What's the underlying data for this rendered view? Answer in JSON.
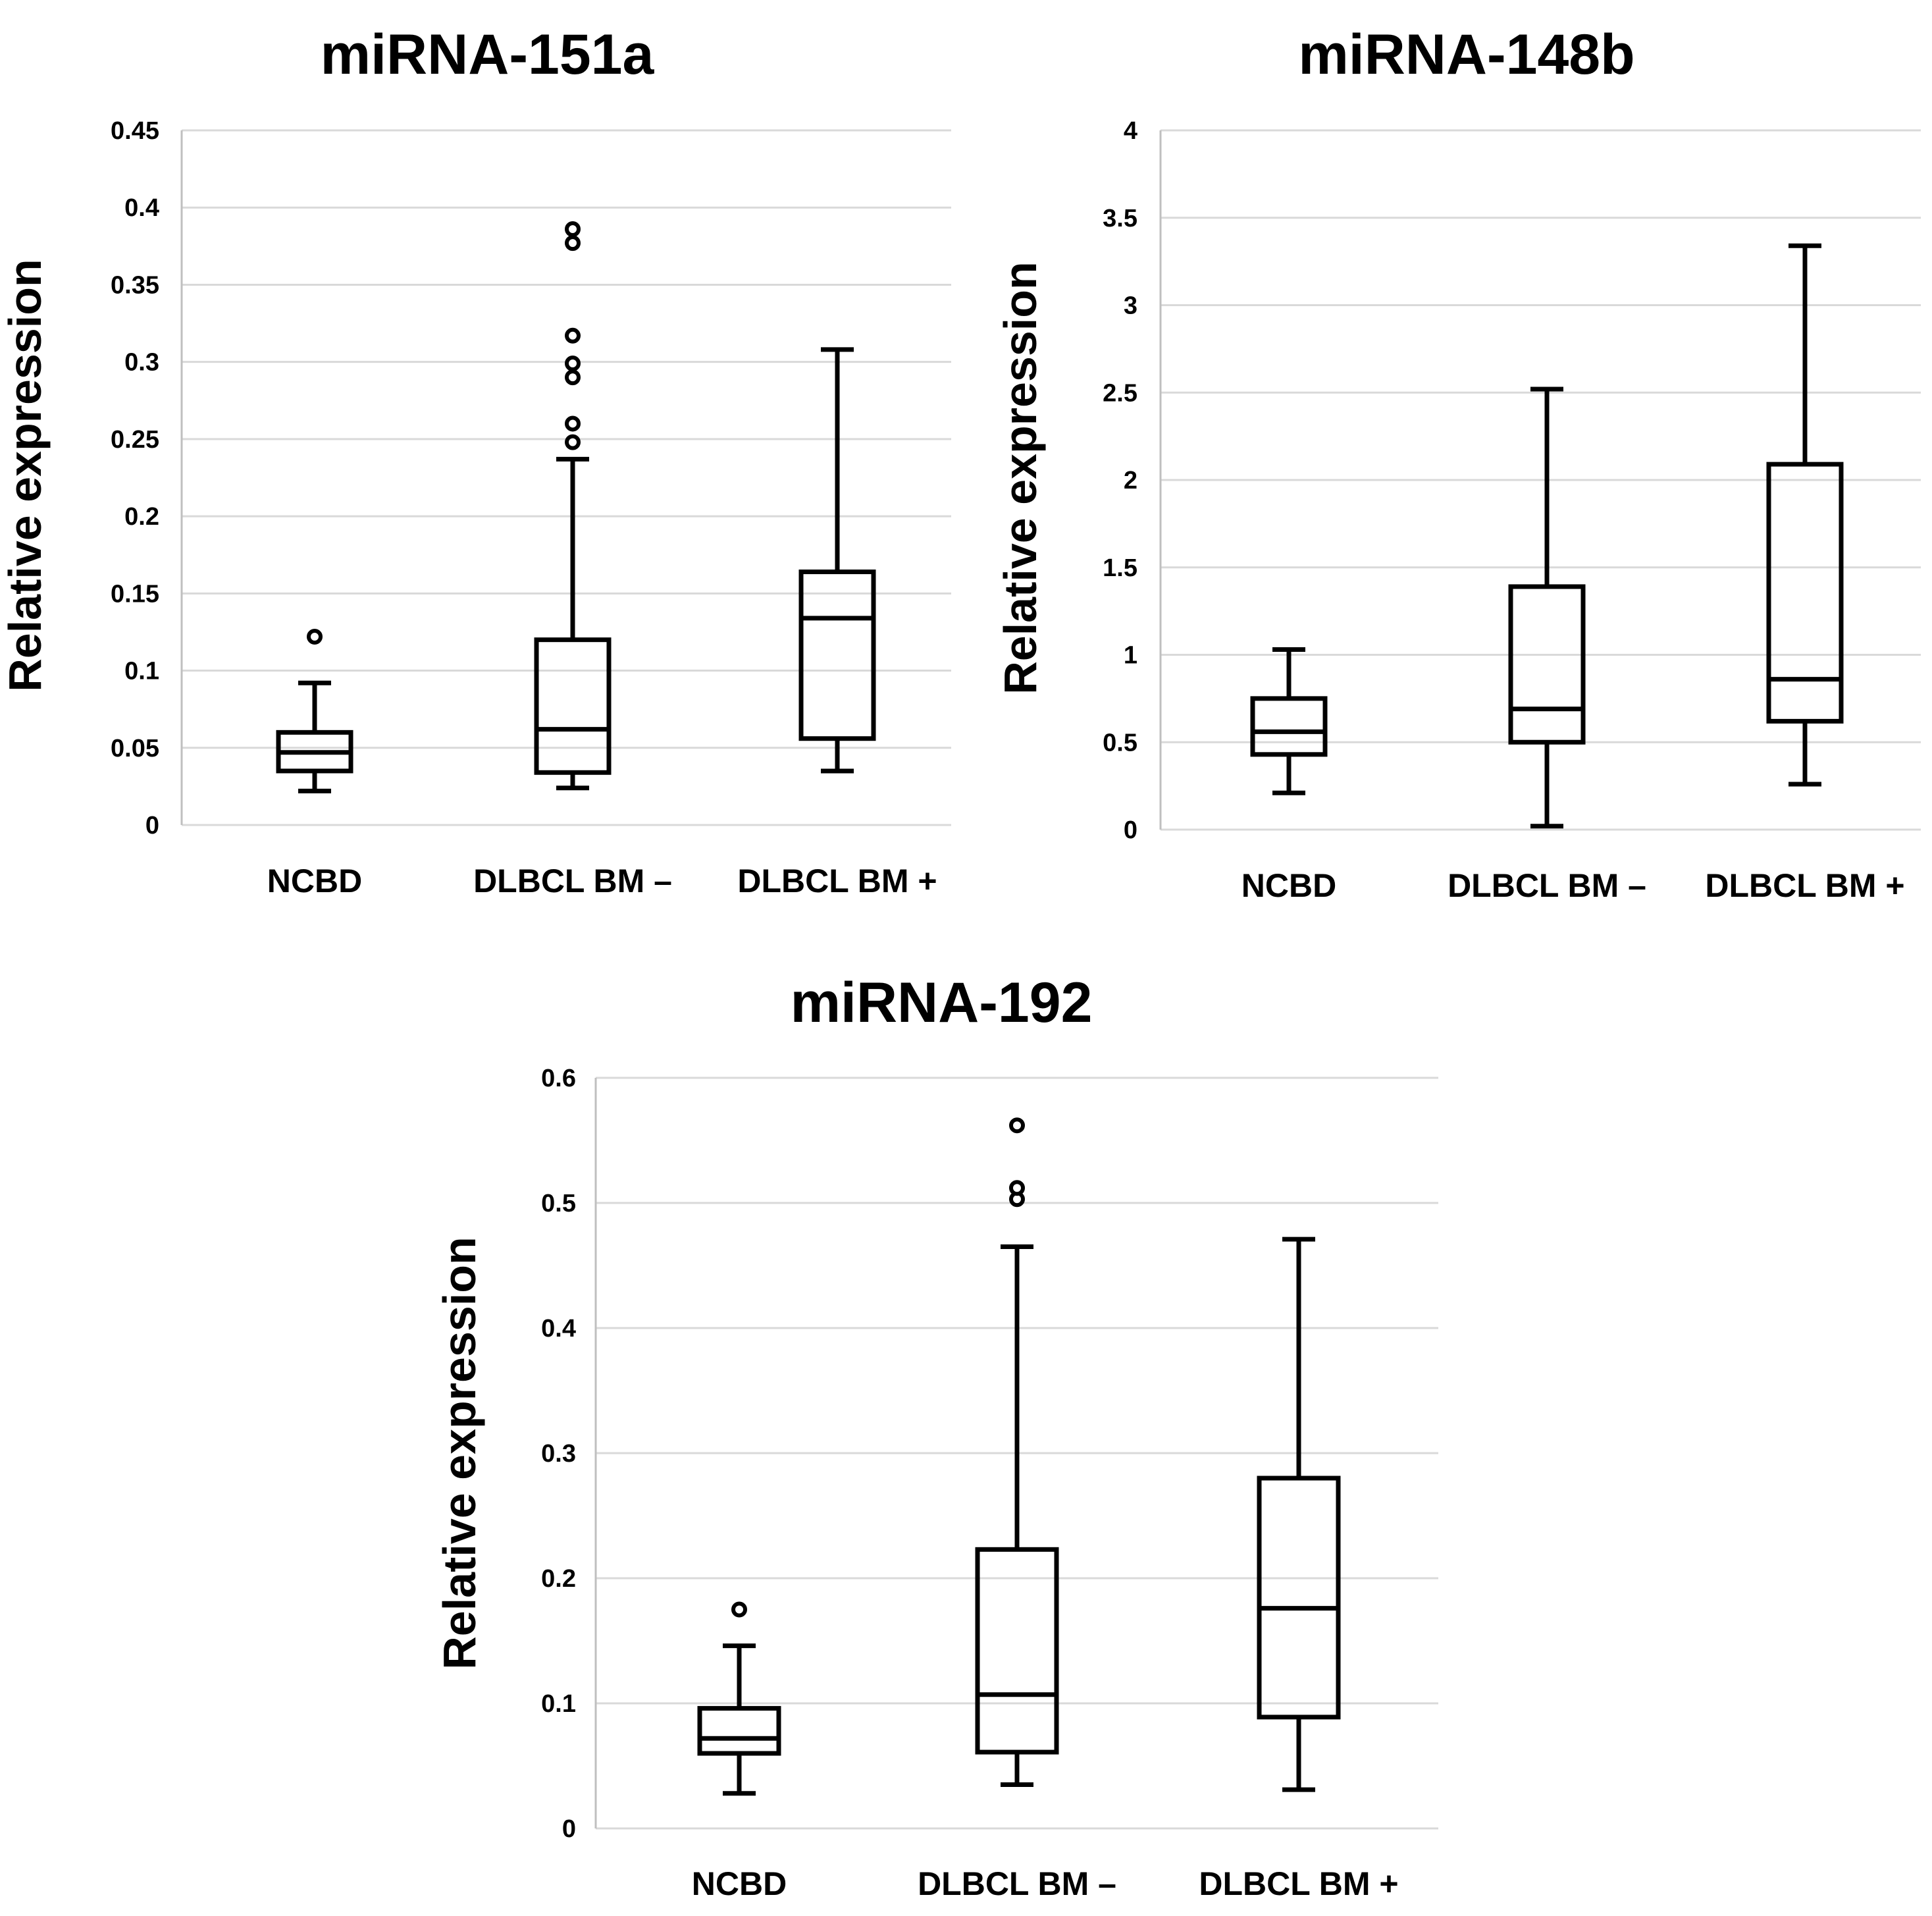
{
  "chart_data": [
    {
      "type": "box",
      "title": "miRNA-151a",
      "ylabel": "Relative expression",
      "xlabel": "",
      "ylim": [
        0,
        0.45
      ],
      "yticks": [
        "0",
        "0.05",
        "0.1",
        "0.15",
        "0.2",
        "0.25",
        "0.3",
        "0.35",
        "0.4",
        "0.45"
      ],
      "grid": true,
      "categories": [
        "NCBD",
        "DLBCL BM –",
        "DLBCL BM +"
      ],
      "boxes": [
        {
          "category": "NCBD",
          "min": 0.022,
          "q1": 0.035,
          "median": 0.047,
          "q3": 0.06,
          "max": 0.092,
          "outliers": [
            0.122
          ]
        },
        {
          "category": "DLBCL BM –",
          "min": 0.024,
          "q1": 0.034,
          "median": 0.062,
          "q3": 0.12,
          "max": 0.237,
          "outliers": [
            0.248,
            0.26,
            0.29,
            0.299,
            0.317,
            0.377,
            0.386
          ]
        },
        {
          "category": "DLBCL BM +",
          "min": 0.035,
          "q1": 0.056,
          "median": 0.134,
          "q3": 0.164,
          "max": 0.308,
          "outliers": []
        }
      ]
    },
    {
      "type": "box",
      "title": "miRNA-148b",
      "ylabel": "Relative expression",
      "xlabel": "",
      "ylim": [
        0,
        4
      ],
      "yticks": [
        "0",
        "0.5",
        "1",
        "1.5",
        "2",
        "2.5",
        "3",
        "3.5",
        "4"
      ],
      "grid": true,
      "categories": [
        "NCBD",
        "DLBCL BM –",
        "DLBCL BM +"
      ],
      "boxes": [
        {
          "category": "NCBD",
          "min": 0.21,
          "q1": 0.43,
          "median": 0.56,
          "q3": 0.75,
          "max": 1.03,
          "outliers": []
        },
        {
          "category": "DLBCL BM –",
          "min": 0.02,
          "q1": 0.5,
          "median": 0.69,
          "q3": 1.39,
          "max": 2.52,
          "outliers": []
        },
        {
          "category": "DLBCL BM +",
          "min": 0.26,
          "q1": 0.62,
          "median": 0.86,
          "q3": 2.09,
          "max": 3.34,
          "outliers": []
        }
      ]
    },
    {
      "type": "box",
      "title": "miRNA-192",
      "ylabel": "Relative expression",
      "xlabel": "",
      "ylim": [
        0,
        0.6
      ],
      "yticks": [
        "0",
        "0.1",
        "0.2",
        "0.3",
        "0.4",
        "0.5",
        "0.6"
      ],
      "grid": true,
      "categories": [
        "NCBD",
        "DLBCL BM –",
        "DLBCL BM +"
      ],
      "boxes": [
        {
          "category": "NCBD",
          "min": 0.028,
          "q1": 0.06,
          "median": 0.072,
          "q3": 0.096,
          "max": 0.146,
          "outliers": [
            0.175
          ]
        },
        {
          "category": "DLBCL BM –",
          "min": 0.035,
          "q1": 0.061,
          "median": 0.107,
          "q3": 0.223,
          "max": 0.465,
          "outliers": [
            0.503,
            0.512,
            0.562
          ]
        },
        {
          "category": "DLBCL BM +",
          "min": 0.031,
          "q1": 0.089,
          "median": 0.176,
          "q3": 0.28,
          "max": 0.471,
          "outliers": []
        }
      ]
    }
  ]
}
